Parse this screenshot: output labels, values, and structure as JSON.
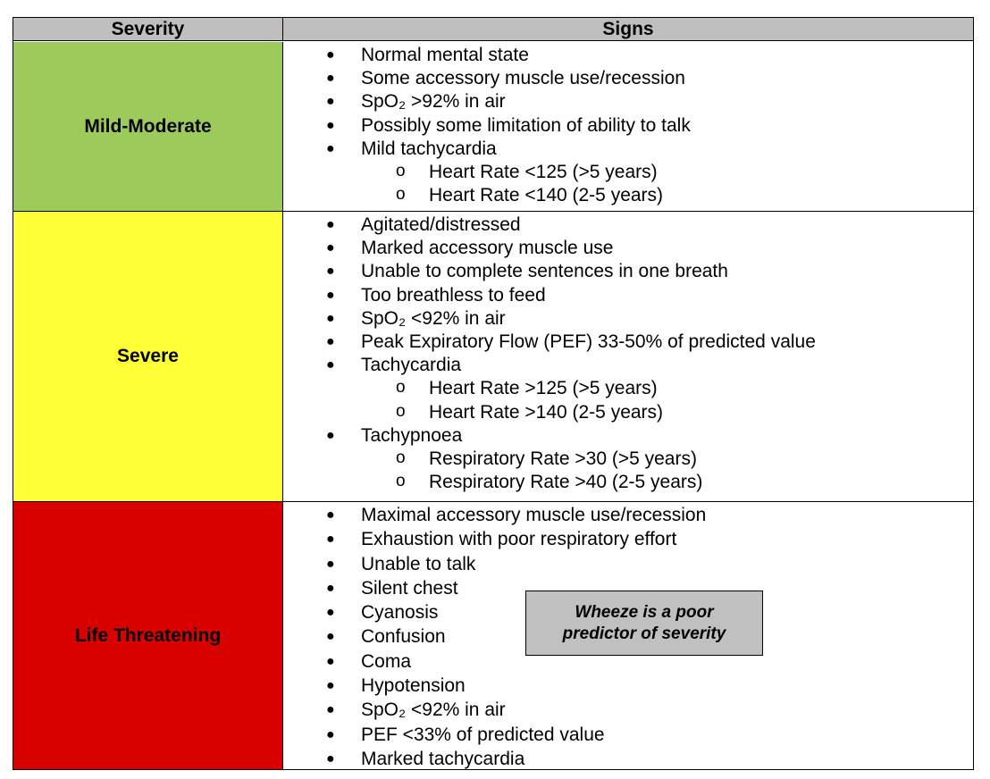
{
  "header": {
    "severity": "Severity",
    "signs": "Signs"
  },
  "colors": {
    "header": "#bfbfbf",
    "mild_moderate": "#9ccb5c",
    "severe": "#ffff35",
    "life_threatening": "#d90000",
    "note": "#c0c0c0"
  },
  "rows": [
    {
      "severity": "Mild-Moderate",
      "signs": [
        "Normal mental state",
        "Some accessory muscle use/recession",
        "SpO₂ >92% in air",
        "Possibly some limitation of ability to talk",
        "Mild tachycardia",
        "Heart Rate <125 (>5 years)",
        "Heart Rate <140 (2-5 years)"
      ]
    },
    {
      "severity": "Severe",
      "signs": [
        "Agitated/distressed",
        "Marked accessory muscle use",
        "Unable to complete sentences in one breath",
        "Too breathless to feed",
        "SpO₂ <92% in air",
        "Peak Expiratory Flow (PEF) 33-50% of predicted value",
        "Tachycardia",
        "Heart Rate >125 (>5 years)",
        "Heart Rate >140 (2-5 years)",
        "Tachypnoea",
        "Respiratory Rate >30 (>5 years)",
        "Respiratory Rate >40 (2-5 years)"
      ]
    },
    {
      "severity": "Life Threatening",
      "signs": [
        "Maximal accessory muscle use/recession",
        "Exhaustion with poor respiratory effort",
        "Unable to talk",
        "Silent chest",
        "Cyanosis",
        "Confusion",
        "Coma",
        "Hypotension",
        "SpO₂ <92% in air",
        "PEF <33% of predicted value",
        "Marked tachycardia"
      ]
    }
  ],
  "bullets": {
    "main": "●",
    "sub": "o"
  },
  "note": {
    "line1": "Wheeze is a poor",
    "line2": "predictor of severity"
  }
}
